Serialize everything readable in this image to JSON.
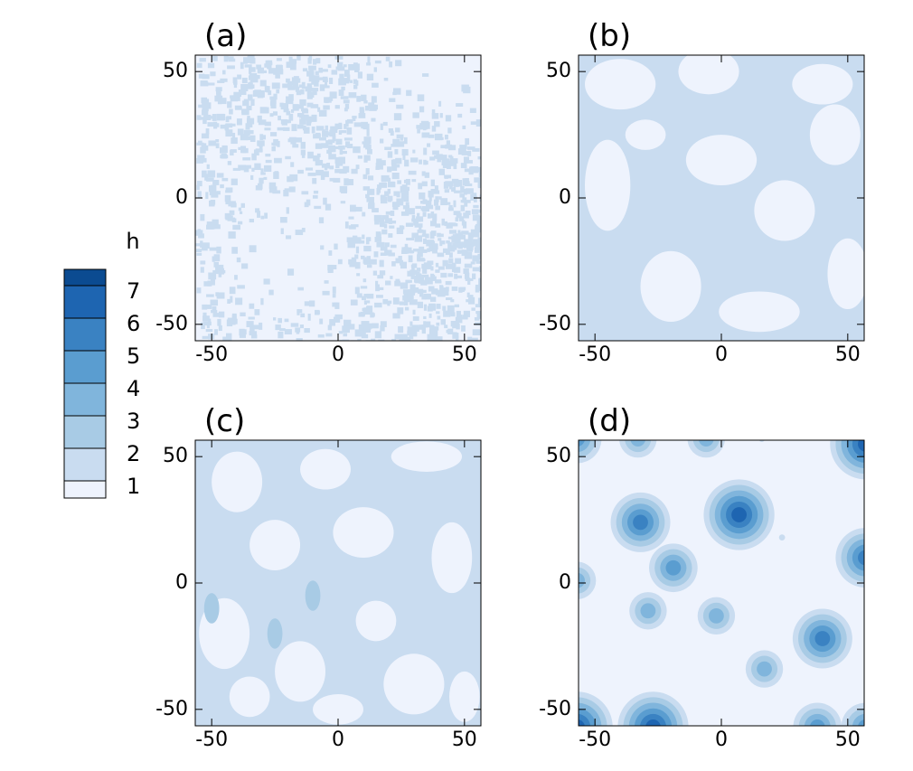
{
  "colorbar": {
    "title": "h",
    "levels": [
      1,
      2,
      3,
      4,
      5,
      6,
      7
    ],
    "colors": [
      "#eef3fd",
      "#c9dcf0",
      "#a8cbe5",
      "#80b5dc",
      "#5a9dd0",
      "#3a82c2",
      "#1e65b1",
      "#0b4b91"
    ]
  },
  "chart_data": [
    {
      "type": "contour",
      "title": "(a)",
      "xlim": [
        -56.5,
        56.5
      ],
      "ylim": [
        -56.5,
        56.5
      ],
      "xticks": [
        -50,
        0,
        50
      ],
      "yticks": [
        -50,
        0,
        50
      ]
    },
    {
      "type": "contour",
      "title": "(b)",
      "xlim": [
        -56.5,
        56.5
      ],
      "ylim": [
        -56.5,
        56.5
      ],
      "xticks": [
        -50,
        0,
        50
      ],
      "yticks": [
        -50,
        0,
        50
      ]
    },
    {
      "type": "contour",
      "title": "(c)",
      "xlim": [
        -56.5,
        56.5
      ],
      "ylim": [
        -56.5,
        56.5
      ],
      "xticks": [
        -50,
        0,
        50
      ],
      "yticks": [
        -50,
        0,
        50
      ]
    },
    {
      "type": "contour",
      "title": "(d)",
      "xlim": [
        -56.5,
        56.5
      ],
      "ylim": [
        -56.5,
        56.5
      ],
      "xticks": [
        -50,
        0,
        50
      ],
      "yticks": [
        -50,
        0,
        50
      ]
    }
  ]
}
